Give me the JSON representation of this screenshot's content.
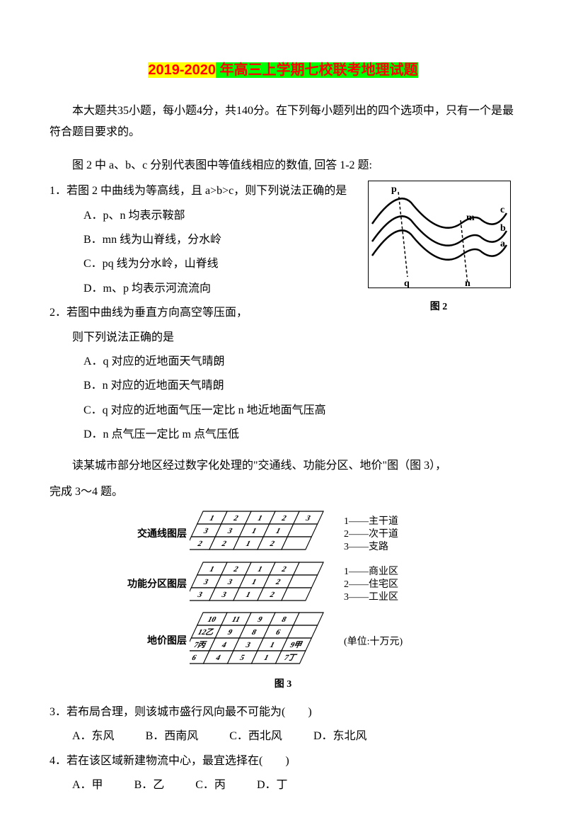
{
  "title_year": "2019-2020",
  "title_rest": " 年高三上学期七校联考地理试题",
  "intro": "本大题共35小题，每小题4分，共140分。在下列每小题列出的四个选项中，只有一个是最符合题目要求的。",
  "instr1": "图 2 中 a、b、c 分别代表图中等值线相应的数值, 回答 1-2 题:",
  "q1": {
    "stem": "1．若图 2 中曲线为等高线，且 a>b>c，则下列说法正确的是",
    "A": "A．p、n 均表示鞍部",
    "B": "B．mn 线为山脊线，分水岭",
    "C": "C．pq 线为分水岭，山脊线",
    "D": "D．m、p 均表示河流流向"
  },
  "q2": {
    "stem": "2．若图中曲线为垂直方向高空等压面，",
    "stem2": "则下列说法正确的是",
    "A": "A．q 对应的近地面天气晴朗",
    "B": "B．n 对应的近地面天气晴朗",
    "C": "C．q 对应的近地面气压一定比 n 地近地面气压高",
    "D": "D．n 点气压一定比 m 点气压低"
  },
  "fig2_caption": "图 2",
  "fig2_labels": {
    "p": "p",
    "q": "q",
    "m": "m",
    "n": "n",
    "a": "a",
    "b": "b",
    "c": "c"
  },
  "section2": "读某城市部分地区经过数字化处理的\"交通线、功能分区、地价\"图（图 3），",
  "section2b": "完成 3～4 题。",
  "fig3": {
    "caption": "图 3",
    "layers": [
      {
        "label": "交通线图层",
        "grid": [
          [
            "1",
            "2",
            "1",
            "2",
            "3"
          ],
          [
            "3",
            "3",
            "1",
            "1",
            ""
          ],
          [
            "2",
            "2",
            "1",
            "2",
            ""
          ]
        ],
        "legend": [
          "1——主干道",
          "2——次干道",
          "3——支路"
        ]
      },
      {
        "label": "功能分区图层",
        "grid": [
          [
            "1",
            "2",
            "1",
            "2",
            ""
          ],
          [
            "3",
            "3",
            "1",
            "2",
            ""
          ],
          [
            "3",
            "3",
            "1",
            "2",
            ""
          ]
        ],
        "legend": [
          "1——商业区",
          "2——住宅区",
          "3——工业区"
        ]
      },
      {
        "label": "地价图层",
        "grid": [
          [
            "10",
            "11",
            "9",
            "8",
            ""
          ],
          [
            "12乙",
            "9",
            "8",
            "6",
            ""
          ],
          [
            "7丙",
            "4",
            "3",
            "1",
            "9甲"
          ],
          [
            "6",
            "4",
            "5",
            "1",
            "7丁"
          ]
        ],
        "legend": [
          "(单位:十万元)"
        ]
      }
    ]
  },
  "q3": {
    "stem": "3．若布局合理，则该城市盛行风向最不可能为(　　)",
    "A": "A．东风",
    "B": "B．西南风",
    "C": "C．西北风",
    "D": "D．东北风"
  },
  "q4": {
    "stem": "4．若在该区域新建物流中心，最宜选择在(　　)",
    "A": "A．甲",
    "B": "B．乙",
    "C": "C．丙",
    "D": "D．丁"
  }
}
